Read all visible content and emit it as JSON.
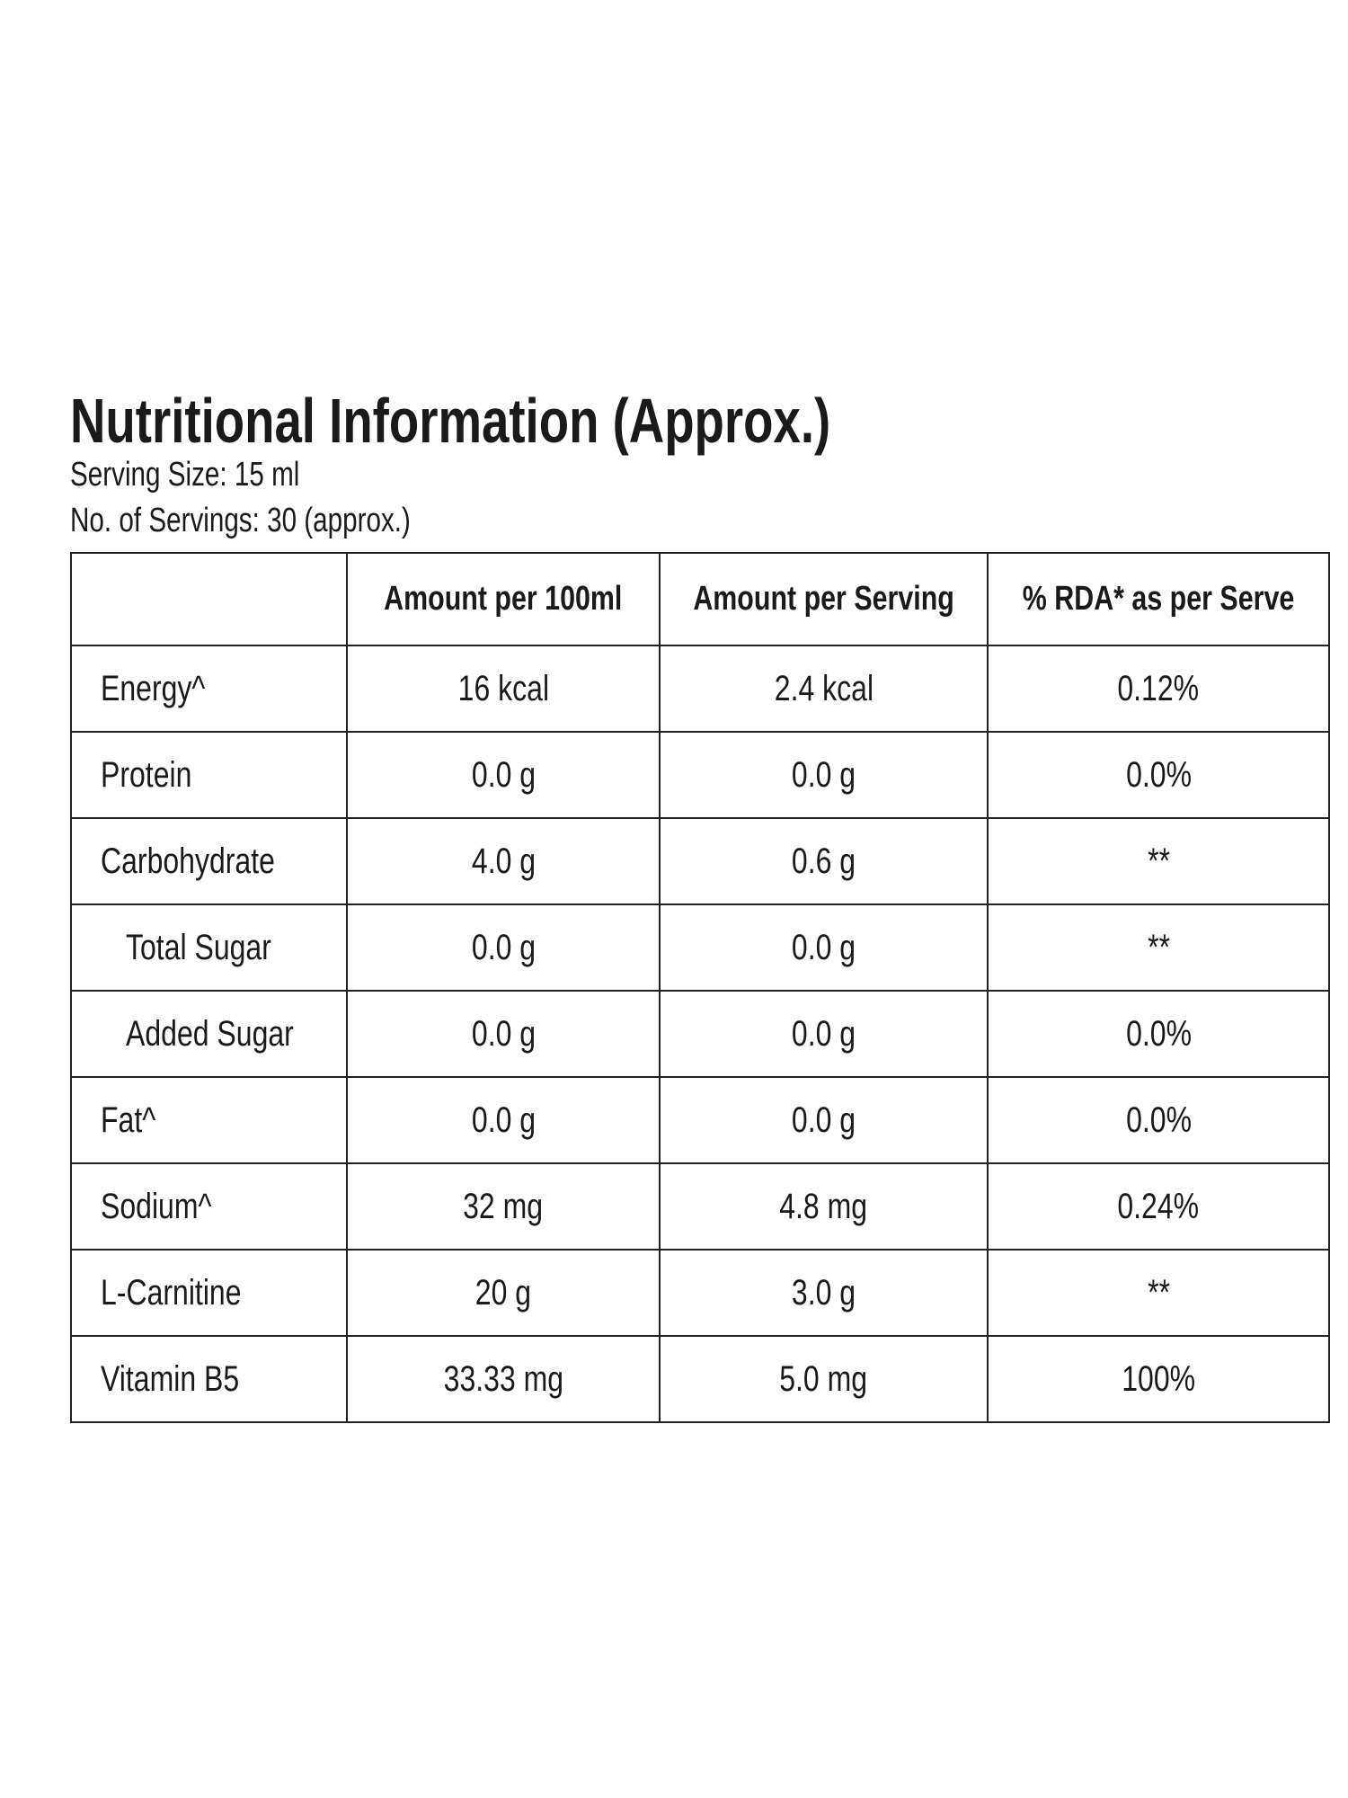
{
  "header": {
    "title": "Nutritional Information (Approx.)",
    "serving_size": "Serving Size: 15 ml",
    "servings": "No. of Servings: 30 (approx.)"
  },
  "table": {
    "columns": [
      "Amount per 100ml",
      "Amount per Serving",
      "% RDA* as per Serve"
    ],
    "rows": [
      [
        "Energy^",
        "16 kcal",
        "2.4 kcal",
        "0.12%"
      ],
      [
        "Protein",
        "0.0 g",
        "0.0 g",
        "0.0%"
      ],
      [
        "Carbohydrate",
        "4.0 g",
        "0.6 g",
        "**"
      ],
      [
        "Total Sugar",
        "0.0 g",
        "0.0 g",
        "**"
      ],
      [
        "Added Sugar",
        "0.0 g",
        "0.0 g",
        "0.0%"
      ],
      [
        "Fat^",
        "0.0 g",
        "0.0 g",
        "0.0%"
      ],
      [
        "Sodium^",
        "32 mg",
        "4.8 mg",
        "0.24%"
      ],
      [
        "L-Carnitine",
        "20 g",
        "3.0 g",
        "**"
      ],
      [
        "Vitamin B5",
        "33.33 mg",
        "5.0 mg",
        "100%"
      ]
    ]
  }
}
